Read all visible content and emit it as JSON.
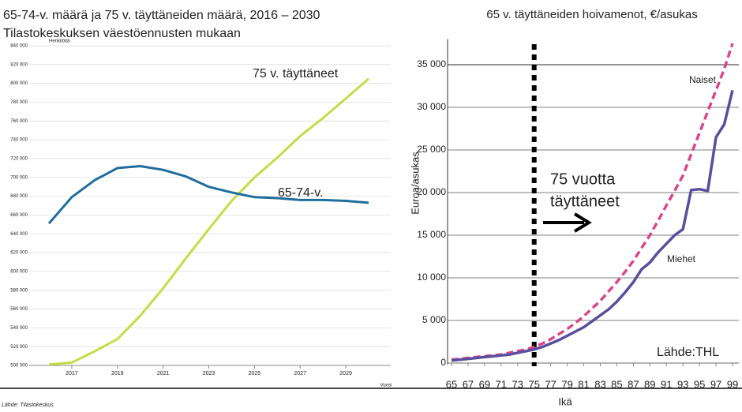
{
  "chart_data": [
    {
      "type": "line",
      "title": "65-74-v. määrä ja 75 v. täyttäneiden määrä, 2016 – 2030",
      "subtitle": "Tilastokeskuksen väestöennusten mukaan",
      "y_label": "Henkilöitä",
      "x_label": "Vuosi",
      "source": "Lähde: Tilastokeskus",
      "x": [
        2016,
        2017,
        2018,
        2019,
        2020,
        2021,
        2022,
        2023,
        2024,
        2025,
        2026,
        2027,
        2028,
        2029,
        2030
      ],
      "series": [
        {
          "name": "75 v. täyttäneet",
          "color": "#c5dc48",
          "values": [
            501000,
            503000,
            515000,
            528000,
            553000,
            582000,
            614000,
            645000,
            675000,
            700000,
            721000,
            744000,
            763000,
            784000,
            805000
          ]
        },
        {
          "name": "65-74-v.",
          "color": "#1f6e9c",
          "values": [
            651000,
            679000,
            697000,
            710000,
            712000,
            708000,
            701000,
            690000,
            684000,
            679000,
            678000,
            676000,
            676000,
            675000,
            673000
          ]
        }
      ],
      "xlim": [
        2016,
        2030
      ],
      "xticks": [
        2017,
        2019,
        2021,
        2023,
        2025,
        2027,
        2029
      ],
      "ylim": [
        500000,
        840000
      ],
      "yticks": [
        {
          "value": 500000,
          "label": "500 000"
        },
        {
          "value": 520000,
          "label": "520 000"
        },
        {
          "value": 540000,
          "label": "540 000"
        },
        {
          "value": 560000,
          "label": "560 000"
        },
        {
          "value": 580000,
          "label": "580 000"
        },
        {
          "value": 600000,
          "label": "600 000"
        },
        {
          "value": 620000,
          "label": "620 000"
        },
        {
          "value": 640000,
          "label": "640 000"
        },
        {
          "value": 660000,
          "label": "660 000"
        },
        {
          "value": 680000,
          "label": "680 000"
        },
        {
          "value": 700000,
          "label": "700 000"
        },
        {
          "value": 720000,
          "label": "720 000"
        },
        {
          "value": 740000,
          "label": "740 000"
        },
        {
          "value": 760000,
          "label": "760 000"
        },
        {
          "value": 780000,
          "label": "780 000"
        },
        {
          "value": 800000,
          "label": "800 000"
        },
        {
          "value": 820000,
          "label": "820 000"
        },
        {
          "value": 840000,
          "label": "840 000"
        }
      ],
      "grid": true
    },
    {
      "type": "line",
      "title": "65 v. täyttäneiden hoivamenot, €/asukas",
      "y_label": "Euroa/asukas",
      "x_label": "Ikä",
      "source": "Lähde:THL",
      "annotation": [
        "75 vuotta",
        "täyttäneet"
      ],
      "vline": 75,
      "x": [
        65,
        66,
        67,
        68,
        69,
        70,
        71,
        72,
        73,
        74,
        75,
        76,
        77,
        78,
        79,
        80,
        81,
        82,
        83,
        84,
        85,
        86,
        87,
        88,
        89,
        90,
        91,
        92,
        93,
        94,
        95,
        96,
        97,
        98,
        99
      ],
      "series": [
        {
          "name": "Naiset",
          "color": "#d9478a",
          "dashed": true,
          "values": [
            400,
            500,
            600,
            700,
            800,
            900,
            1000,
            1200,
            1400,
            1600,
            1900,
            2300,
            2800,
            3400,
            4000,
            4700,
            5500,
            6400,
            7300,
            8400,
            9500,
            10700,
            12000,
            13500,
            15000,
            16700,
            18500,
            20200,
            22000,
            24500,
            27000,
            29500,
            32000,
            34500,
            37500
          ]
        },
        {
          "name": "Miehet",
          "color": "#5b4e9c",
          "dashed": false,
          "values": [
            300,
            400,
            500,
            600,
            700,
            800,
            900,
            1000,
            1200,
            1400,
            1600,
            1900,
            2300,
            2700,
            3200,
            3700,
            4200,
            4900,
            5600,
            6300,
            7200,
            8300,
            9500,
            11000,
            11800,
            13000,
            14000,
            15000,
            15700,
            20300,
            20400,
            20200,
            26500,
            28000,
            32000
          ]
        }
      ],
      "xlim": [
        65,
        99
      ],
      "xticks": [
        65,
        67,
        69,
        71,
        73,
        75,
        77,
        79,
        81,
        83,
        85,
        87,
        89,
        91,
        93,
        95,
        97,
        99
      ],
      "ylim": [
        0,
        38000
      ],
      "yticks": [
        0,
        {
          "value": 5000,
          "label": "5 000"
        },
        {
          "value": 10000,
          "label": "10 000"
        },
        {
          "value": 15000,
          "label": "15 000"
        },
        {
          "value": 20000,
          "label": "20 000"
        },
        {
          "value": 25000,
          "label": "25 000"
        },
        {
          "value": 30000,
          "label": "30 000"
        },
        {
          "value": 35000,
          "label": "35 000"
        }
      ],
      "grid": true
    }
  ]
}
